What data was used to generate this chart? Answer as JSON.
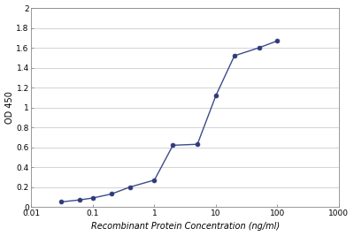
{
  "x": [
    0.03,
    0.06,
    0.1,
    0.2,
    0.4,
    1.0,
    2.0,
    5.0,
    10.0,
    20.0,
    50.0,
    100.0
  ],
  "y": [
    0.05,
    0.07,
    0.09,
    0.13,
    0.2,
    0.27,
    0.62,
    0.63,
    1.12,
    1.52,
    1.6,
    1.67
  ],
  "xlabel": "Recombinant Protein Concentration (ng/ml)",
  "ylabel": "OD 450",
  "xlim": [
    0.01,
    1000
  ],
  "ylim": [
    0,
    2
  ],
  "yticks": [
    0,
    0.2,
    0.4,
    0.6,
    0.8,
    1.0,
    1.2,
    1.4,
    1.6,
    1.8,
    2.0
  ],
  "ytick_labels": [
    "0",
    "0.2",
    "0.4",
    "0.6",
    "0.8",
    "1",
    "1.2",
    "1.4",
    "1.6",
    "1.8",
    "2"
  ],
  "xtick_labels": [
    "0.01",
    "0.1",
    "1",
    "10",
    "100",
    "1000"
  ],
  "xtick_values": [
    0.01,
    0.1,
    1,
    10,
    100,
    1000
  ],
  "line_color": "#3d4b8a",
  "marker_color": "#2e3a7a",
  "bg_color": "#ffffff",
  "fig_bg_color": "#ffffff",
  "grid_color": "#cccccc"
}
